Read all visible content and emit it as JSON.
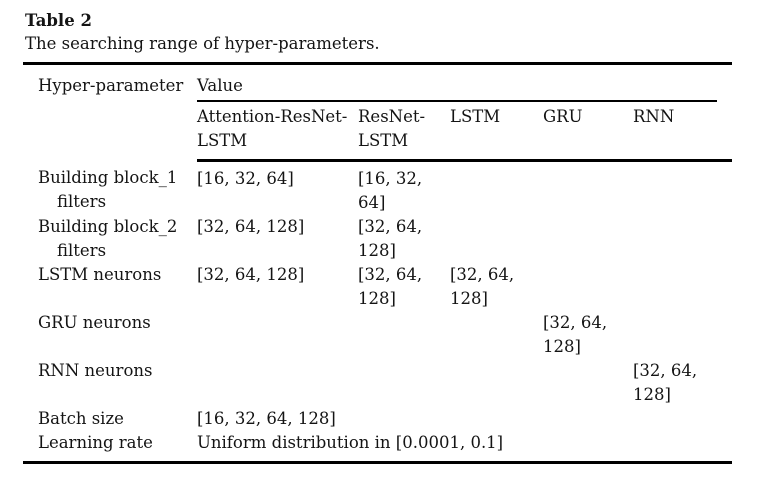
{
  "title": "Table 2",
  "caption": "The searching range of hyper-parameters.",
  "table": {
    "hyperparameter_header": "Hyper-parameter",
    "value_header": "Value",
    "model_headers": [
      "Attention-ResNet-LSTM",
      "ResNet-LSTM",
      "LSTM",
      "GRU",
      "RNN"
    ],
    "rows": [
      {
        "label": "Building block_1 filters",
        "values": [
          "[16, 32, 64]",
          "[16, 32, 64]",
          "",
          "",
          ""
        ]
      },
      {
        "label": "Building block_2 filters",
        "values": [
          "[32, 64, 128]",
          "[32, 64, 128]",
          "",
          "",
          ""
        ]
      },
      {
        "label": "LSTM neurons",
        "values": [
          "[32, 64, 128]",
          "[32, 64, 128]",
          "[32, 64, 128]",
          "",
          ""
        ]
      },
      {
        "label": "GRU neurons",
        "values": [
          "",
          "",
          "",
          "[32, 64, 128]",
          ""
        ]
      },
      {
        "label": "RNN neurons",
        "values": [
          "",
          "",
          "",
          "",
          "[32, 64, 128]"
        ]
      },
      {
        "label": "Batch size",
        "values": [
          "[16, 32, 64, 128]",
          "",
          "",
          "",
          ""
        ]
      },
      {
        "label": "Learning rate",
        "values": [
          "Uniform distribution in [0.0001, 0.1]",
          "",
          "",
          "",
          ""
        ]
      }
    ]
  }
}
